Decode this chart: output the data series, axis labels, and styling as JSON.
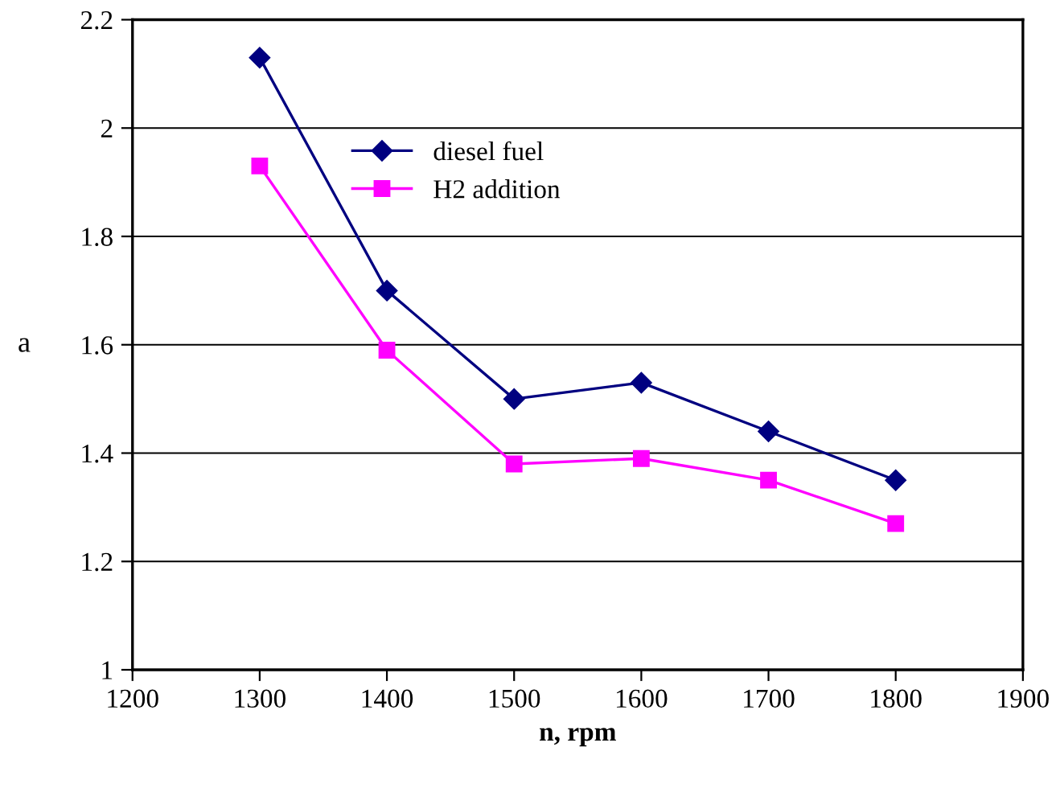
{
  "chart_data": {
    "type": "line",
    "xlabel": "n, rpm",
    "ylabel": "a",
    "x": [
      1300,
      1400,
      1500,
      1600,
      1700,
      1800
    ],
    "series": [
      {
        "name": "diesel fuel",
        "color": "#000080",
        "marker": "diamond",
        "values": [
          2.13,
          1.7,
          1.5,
          1.53,
          1.44,
          1.35
        ]
      },
      {
        "name": "H2 addition",
        "color": "#ff00ff",
        "marker": "square",
        "values": [
          1.93,
          1.59,
          1.38,
          1.39,
          1.35,
          1.27
        ]
      }
    ],
    "xlim": [
      1200,
      1900
    ],
    "xticks": [
      1200,
      1300,
      1400,
      1500,
      1600,
      1700,
      1800,
      1900
    ],
    "ylim": [
      1,
      2.2
    ],
    "yticks": [
      1,
      1.2,
      1.4,
      1.6,
      1.8,
      2,
      2.2
    ],
    "grid": "y",
    "legend": "top",
    "line_style": "solid"
  }
}
